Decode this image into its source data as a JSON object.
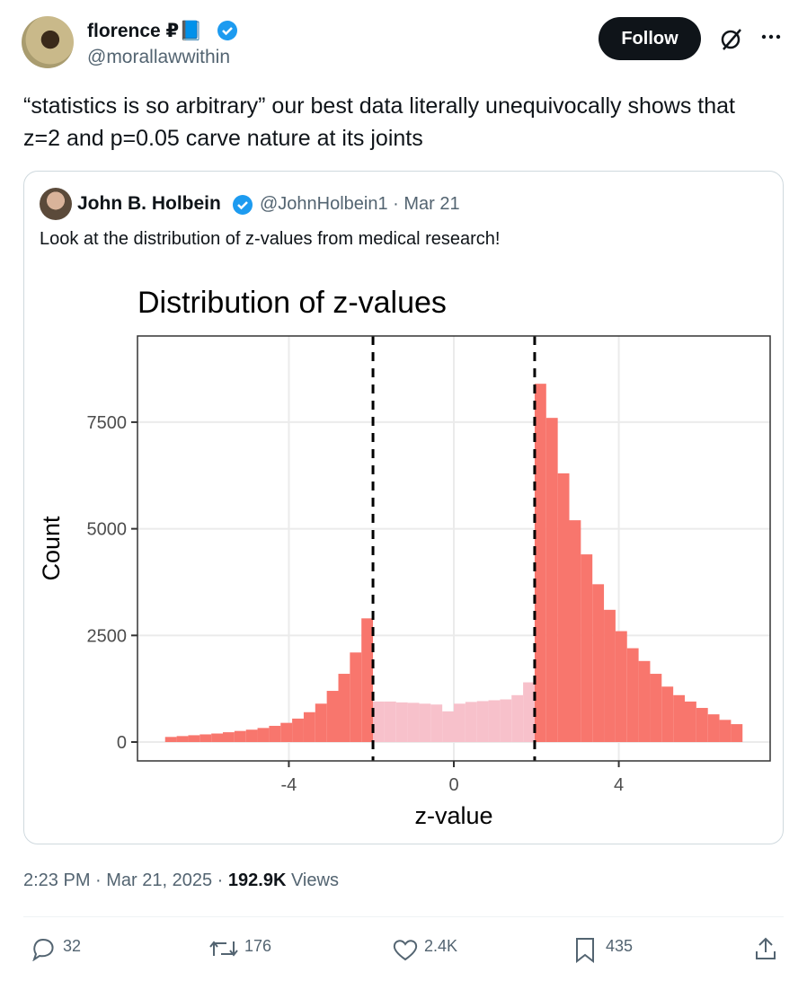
{
  "author": {
    "name": "florence ₽📘",
    "handle": "@morallawwithin"
  },
  "follow": "Follow",
  "text": "“statistics is so arbitrary” our best data literally unequivocally shows that z=2 and p=0.05 carve nature at its joints",
  "quote": {
    "name": "John B. Holbein",
    "meta": "@JohnHolbein1 · Mar 21",
    "text": "Look at the distribution of z-values from medical research!",
    "chart": {
      "type": "histogram",
      "title": "Distribution of z-values",
      "x_label": "z-value",
      "y_label": "Count",
      "bins": [
        -7,
        -6.72,
        -6.44,
        -6.16,
        -5.88,
        -5.6,
        -5.32,
        -5.04,
        -4.76,
        -4.48,
        -4.2,
        -3.92,
        -3.64,
        -3.36,
        -3.08,
        -2.8,
        -2.52,
        -2.24,
        -1.96,
        -1.68,
        -1.4,
        -1.12,
        -0.84,
        -0.56,
        -0.28,
        0,
        0.28,
        0.56,
        0.84,
        1.12,
        1.4,
        1.68,
        1.96,
        2.24,
        2.52,
        2.8,
        3.08,
        3.36,
        3.64,
        3.92,
        4.2,
        4.48,
        4.76,
        5.04,
        5.32,
        5.6,
        5.88,
        6.16,
        6.44,
        6.72,
        7
      ],
      "values": [
        120,
        140,
        160,
        180,
        200,
        230,
        260,
        290,
        330,
        380,
        450,
        550,
        700,
        900,
        1200,
        1600,
        2100,
        2900,
        950,
        950,
        930,
        920,
        900,
        880,
        720,
        900,
        940,
        960,
        980,
        1000,
        1100,
        1400,
        8400,
        7600,
        6300,
        5200,
        4400,
        3700,
        3100,
        2600,
        2200,
        1900,
        1600,
        1300,
        1100,
        950,
        800,
        650,
        520,
        420
      ],
      "vlines": [
        -1.96,
        1.96
      ],
      "colors": {
        "significant": "#f8766d",
        "nonsignificant": "#f7c1cb"
      },
      "xlim": [
        -7.67,
        7.67
      ],
      "ylim": [
        -442,
        9520
      ],
      "xticks": [
        -4,
        0,
        4
      ],
      "yticks": [
        0,
        2500,
        5000,
        7500
      ],
      "grid": true
    }
  },
  "footer": {
    "time_date": "2:23 PM · Mar 21, 2025 ·",
    "views": "192.9K",
    "views_label": "Views"
  },
  "actions": {
    "replies": "32",
    "reposts": "176",
    "likes": "2.4K",
    "bookmarks": "435"
  }
}
